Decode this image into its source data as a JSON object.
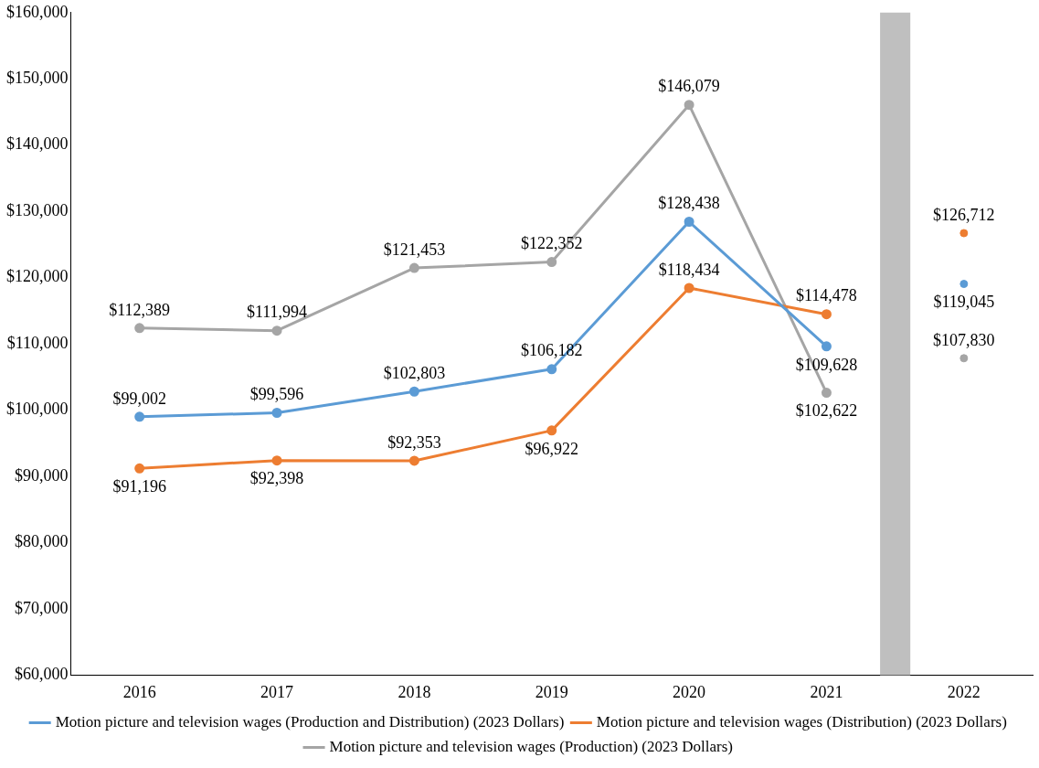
{
  "chart_data": {
    "type": "line",
    "categories": [
      "2016",
      "2017",
      "2018",
      "2019",
      "2020",
      "2021",
      "2022"
    ],
    "ylim": [
      60000,
      160000
    ],
    "yticks": [
      {
        "value": 60000,
        "label": "$60,000"
      },
      {
        "value": 70000,
        "label": "$70,000"
      },
      {
        "value": 80000,
        "label": "$80,000"
      },
      {
        "value": 90000,
        "label": "$90,000"
      },
      {
        "value": 100000,
        "label": "$100,000"
      },
      {
        "value": 110000,
        "label": "$110,000"
      },
      {
        "value": 120000,
        "label": "$120,000"
      },
      {
        "value": 130000,
        "label": "$130,000"
      },
      {
        "value": 140000,
        "label": "$140,000"
      },
      {
        "value": 150000,
        "label": "$150,000"
      },
      {
        "value": 160000,
        "label": "$160,000"
      }
    ],
    "series": [
      {
        "name": "Motion picture and television wages (Production and Distribution) (2023 Dollars)",
        "color": "#5b9bd5",
        "values": [
          99002,
          99596,
          102803,
          106182,
          128438,
          109628,
          null
        ],
        "value_labels": [
          "$99,002",
          "$99,596",
          "$102,803",
          "$106,182",
          "$128,438",
          "$109,628",
          null
        ]
      },
      {
        "name": "Motion picture and television wages (Distribution) (2023 Dollars)",
        "color": "#ed7d31",
        "values": [
          91196,
          92398,
          92353,
          96922,
          118434,
          114478,
          null
        ],
        "value_labels": [
          "$91,196",
          "$92,398",
          "$92,353",
          "$96,922",
          "$118,434",
          "$114,478",
          null
        ]
      },
      {
        "name": "Motion picture and television wages (Production) (2023 Dollars)",
        "color": "#a5a5a5",
        "values": [
          112389,
          111994,
          121453,
          122352,
          146079,
          102622,
          null
        ],
        "value_labels": [
          "$112,389",
          "$111,994",
          "$121,453",
          "$122,352",
          "$146,079",
          "$102,622",
          null
        ]
      },
      {
        "type": "scatter",
        "color": "#5b9bd5",
        "values": [
          null,
          null,
          null,
          null,
          null,
          null,
          119045
        ],
        "value_labels": [
          null,
          null,
          null,
          null,
          null,
          null,
          "$119,045"
        ]
      },
      {
        "type": "scatter",
        "color": "#ed7d31",
        "values": [
          null,
          null,
          null,
          null,
          null,
          null,
          126712
        ],
        "value_labels": [
          null,
          null,
          null,
          null,
          null,
          null,
          "$126,712"
        ]
      },
      {
        "type": "scatter",
        "color": "#a5a5a5",
        "values": [
          null,
          null,
          null,
          null,
          null,
          null,
          107830
        ],
        "value_labels": [
          null,
          null,
          null,
          null,
          null,
          null,
          "$107,830"
        ]
      }
    ],
    "bands": [
      {
        "axis": "x",
        "from": "2021",
        "to": "2022",
        "color": "#bfbfbf"
      }
    ],
    "grid": false,
    "legend": "bottom",
    "marker": "circle",
    "line_style": "solid"
  }
}
